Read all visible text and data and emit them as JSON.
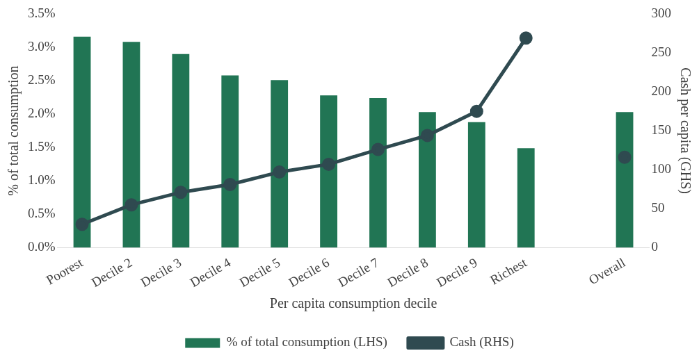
{
  "chart_data": {
    "type": "bar",
    "xlabel": "Per capita consumption decile",
    "ylabel": "% of total consumption",
    "y2label": "Cash per capita (GHS)",
    "categories": [
      "Poorest",
      "Decile 2",
      "Decile 3",
      "Decile 4",
      "Decile 5",
      "Decile 6",
      "Decile 7",
      "Decile 8",
      "Decile 9",
      "Richest",
      null,
      "Overall"
    ],
    "series": [
      {
        "name": "% of total consumption (LHS)",
        "color": "#217554",
        "values": [
          3.16,
          3.08,
          2.9,
          2.58,
          2.51,
          2.28,
          2.24,
          2.03,
          1.88,
          1.49,
          null,
          2.03
        ]
      },
      {
        "name": "Cash (RHS)",
        "type": "line",
        "axis": "y2",
        "color": "#2f4a50",
        "marker": "circle",
        "line_style": "solid",
        "values": [
          30,
          55,
          71,
          81,
          97,
          107,
          126,
          144,
          175,
          269,
          null,
          116
        ]
      }
    ],
    "ylim": [
      0,
      3.5
    ],
    "yticks": [
      {
        "value": 0,
        "label": "0.0%"
      },
      {
        "value": 0.5,
        "label": "0.5%"
      },
      {
        "value": 1,
        "label": "1.0%"
      },
      {
        "value": 1.5,
        "label": "1.5%"
      },
      {
        "value": 2,
        "label": "2.0%"
      },
      {
        "value": 2.5,
        "label": "2.5%"
      },
      {
        "value": 3,
        "label": "3.0%"
      },
      {
        "value": 3.5,
        "label": "3.5%"
      }
    ],
    "y2lim": [
      0,
      300
    ],
    "y2ticks": [
      0,
      50,
      100,
      150,
      200,
      250,
      300
    ],
    "grid": false,
    "legend": "bottom"
  }
}
